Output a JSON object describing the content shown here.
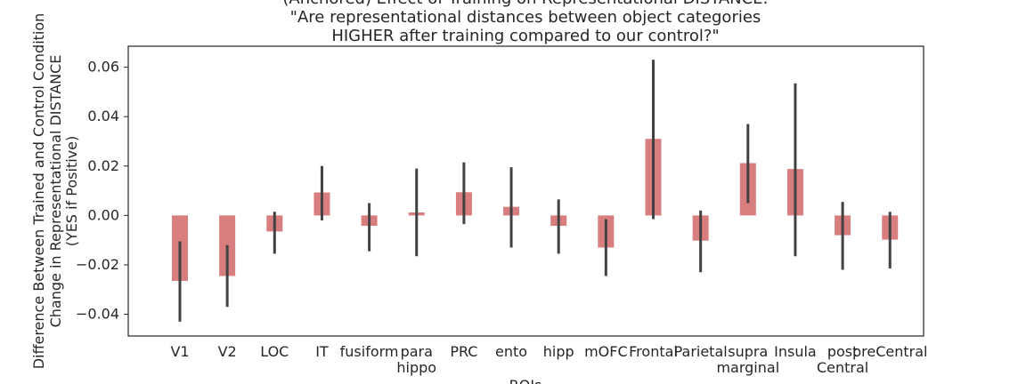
{
  "chart_data": {
    "type": "bar",
    "title_lines": [
      "(Anchored) Effect of Training on Representational DISTANCE:",
      "\"Are representational distances between object categories",
      "HIGHER after training compared to our control?\""
    ],
    "ylabel_lines": [
      "Difference Between Trained and Control Condition",
      "Change in Representational DISTANCE",
      "(YES if Positive)"
    ],
    "xlabel": "ROIs",
    "categories": [
      "V1",
      "V2",
      "LOC",
      "IT",
      "fusiform",
      "para\nhippo",
      "PRC",
      "ento",
      "hipp",
      "mOFC",
      "Frontal",
      "Parietal",
      "supra\nmarginal",
      "Insula",
      "post\nCentral",
      "preCentral"
    ],
    "values": [
      -0.0265,
      -0.0245,
      -0.0065,
      0.0093,
      -0.0042,
      0.0012,
      0.0094,
      0.0035,
      -0.0042,
      -0.013,
      0.031,
      -0.0102,
      0.0212,
      0.0188,
      -0.008,
      -0.0098
    ],
    "error_low": [
      -0.043,
      -0.037,
      -0.0155,
      -0.002,
      -0.0145,
      -0.0165,
      -0.0035,
      -0.013,
      -0.0155,
      -0.0245,
      -0.0015,
      -0.023,
      0.005,
      -0.0165,
      -0.022,
      -0.0215
    ],
    "error_high": [
      -0.0105,
      -0.012,
      0.0015,
      0.02,
      0.005,
      0.019,
      0.0215,
      0.0195,
      0.0065,
      -0.0015,
      0.063,
      0.002,
      0.037,
      0.0535,
      0.0055,
      0.0015
    ],
    "yticks": [
      0.06,
      0.04,
      0.02,
      0.0,
      -0.02,
      -0.04
    ],
    "ytick_labels": [
      "0.06",
      "0.04",
      "0.02",
      "0.00",
      "−0.02",
      "−0.04"
    ],
    "ylim": [
      -0.0488,
      0.0685
    ],
    "bar_color": "#d87e7e",
    "error_color": "#424242",
    "grid": false
  }
}
